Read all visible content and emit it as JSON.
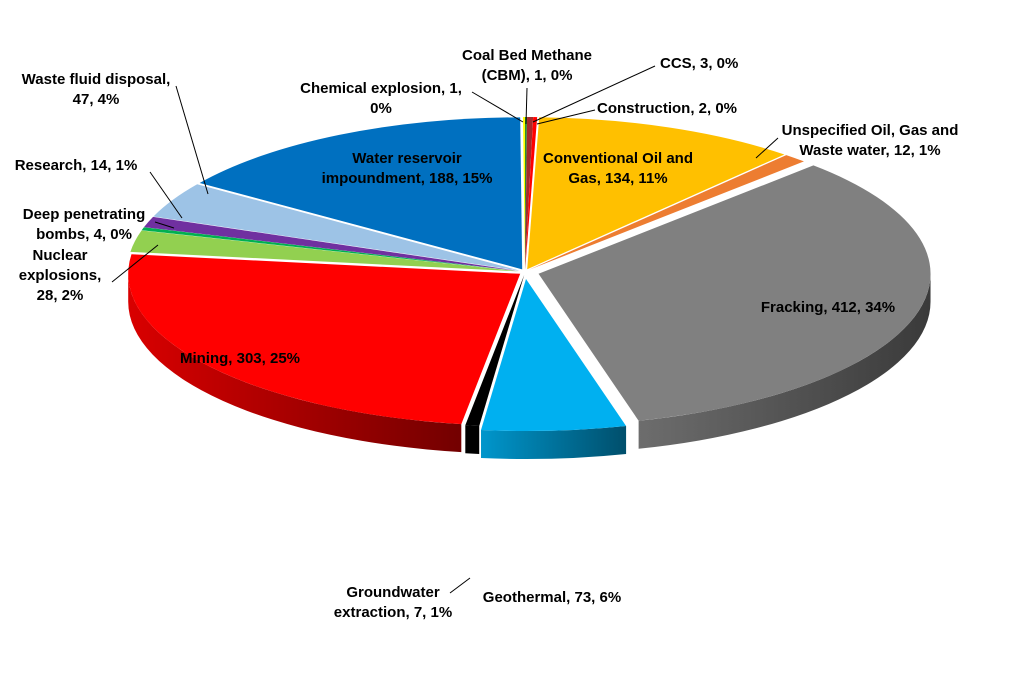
{
  "chart_data": {
    "type": "pie",
    "title": "",
    "style": "3d-exploded-cylinder",
    "slices": [
      {
        "name": "Coal Bed Methane (CBM)",
        "value": 1,
        "percent": "0%",
        "lines": [
          "Coal Bed Methane",
          "(CBM), 1, 0%"
        ],
        "color": "#2e8b2e"
      },
      {
        "name": "CCS",
        "value": 3,
        "percent": "0%",
        "lines": [
          "CCS, 3, 0%"
        ],
        "color": "#a52a2a"
      },
      {
        "name": "Construction",
        "value": 2,
        "percent": "0%",
        "lines": [
          "Construction,  2, 0%"
        ],
        "color": "#ff0000"
      },
      {
        "name": "Conventional Oil and Gas",
        "value": 134,
        "percent": "11%",
        "lines": [
          "Conventional  Oil and",
          "Gas, 134, 11%"
        ],
        "color": "#ffc000"
      },
      {
        "name": "Unspecified Oil, Gas and Waste water",
        "value": 12,
        "percent": "1%",
        "lines": [
          "Unspecified Oil, Gas and",
          "Waste water, 12, 1%"
        ],
        "color": "#ed7d31"
      },
      {
        "name": "Fracking",
        "value": 412,
        "percent": "34%",
        "lines": [
          "Fracking, 412, 34%"
        ],
        "color": "#808080"
      },
      {
        "name": "Geothermal",
        "value": 73,
        "percent": "6%",
        "lines": [
          "Geothermal, 73, 6%"
        ],
        "color": "#00b0f0"
      },
      {
        "name": "Groundwater extraction",
        "value": 7,
        "percent": "1%",
        "lines": [
          "Groundwater",
          "extraction, 7, 1%"
        ],
        "color": "#000000"
      },
      {
        "name": "Mining",
        "value": 303,
        "percent": "25%",
        "lines": [
          "Mining, 303, 25%"
        ],
        "color": "#ff0000"
      },
      {
        "name": "Nuclear explosions",
        "value": 28,
        "percent": "2%",
        "lines": [
          "Nuclear",
          "explosions,",
          "28, 2%"
        ],
        "color": "#92d050"
      },
      {
        "name": "Deep penetrating bombs",
        "value": 4,
        "percent": "0%",
        "lines": [
          "Deep penetrating",
          "bombs, 4, 0%"
        ],
        "color": "#00b050"
      },
      {
        "name": "Research",
        "value": 14,
        "percent": "1%",
        "lines": [
          "Research, 14, 1%"
        ],
        "color": "#7030a0"
      },
      {
        "name": "Waste fluid disposal",
        "value": 47,
        "percent": "4%",
        "lines": [
          "Waste fluid disposal,",
          "47, 4%"
        ],
        "color": "#9dc3e6"
      },
      {
        "name": "Water reservoir impoundment",
        "value": 188,
        "percent": "15%",
        "lines": [
          "Water reservoir",
          "impoundment,  188, 15%"
        ],
        "color": "#0070c0"
      },
      {
        "name": "Chemical explosion",
        "value": 1,
        "percent": "0%",
        "lines": [
          "Chemical explosion, 1,",
          "0%"
        ],
        "color": "#ffff00"
      }
    ]
  }
}
